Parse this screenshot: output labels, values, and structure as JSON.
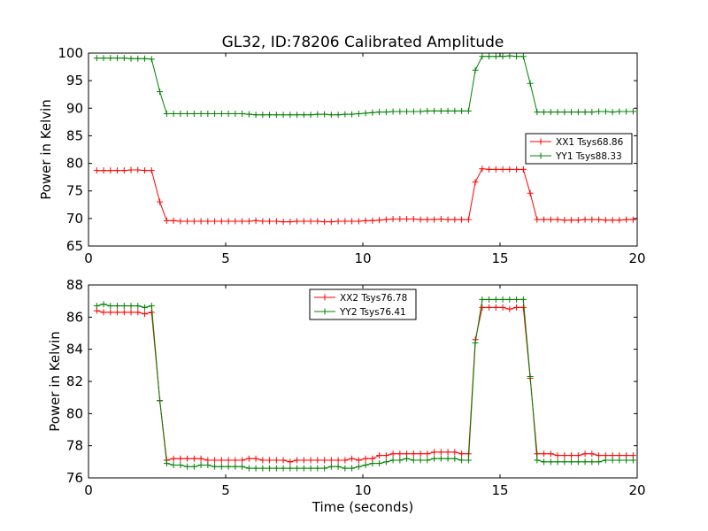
{
  "figure": {
    "title": "GL32, ID:78206 Calibrated Amplitude"
  },
  "chart_data": [
    {
      "type": "line",
      "ylabel": "Power in Kelvin",
      "xlabel": "",
      "xlim": [
        0,
        20
      ],
      "ylim": [
        65,
        100
      ],
      "xticks": [
        0,
        5,
        10,
        15,
        20
      ],
      "yticks": [
        65,
        70,
        75,
        80,
        85,
        90,
        95,
        100
      ],
      "grid": false,
      "legend_position": "right",
      "series": [
        {
          "name": "XX1 Tsys68.86",
          "color": "#ff0000",
          "x": [
            0.3,
            0.55,
            0.8,
            1.05,
            1.3,
            1.55,
            1.8,
            2.05,
            2.3,
            2.6,
            2.85,
            3.1,
            3.35,
            3.6,
            3.85,
            4.1,
            4.35,
            4.6,
            4.85,
            5.1,
            5.35,
            5.6,
            5.85,
            6.1,
            6.35,
            6.6,
            6.85,
            7.1,
            7.35,
            7.6,
            7.85,
            8.1,
            8.35,
            8.6,
            8.85,
            9.1,
            9.35,
            9.6,
            9.85,
            10.1,
            10.35,
            10.6,
            10.85,
            11.1,
            11.35,
            11.6,
            11.85,
            12.1,
            12.35,
            12.6,
            12.85,
            13.1,
            13.35,
            13.6,
            13.85,
            14.1,
            14.35,
            14.6,
            14.85,
            15.1,
            15.35,
            15.6,
            15.85,
            16.1,
            16.35,
            16.6,
            16.85,
            17.1,
            17.35,
            17.6,
            17.85,
            18.1,
            18.35,
            18.6,
            18.85,
            19.1,
            19.35,
            19.6,
            19.85
          ],
          "values": [
            78.7,
            78.7,
            78.7,
            78.7,
            78.7,
            78.8,
            78.8,
            78.7,
            78.7,
            73.0,
            69.6,
            69.6,
            69.5,
            69.5,
            69.5,
            69.5,
            69.5,
            69.5,
            69.5,
            69.5,
            69.5,
            69.5,
            69.5,
            69.6,
            69.5,
            69.5,
            69.5,
            69.4,
            69.4,
            69.5,
            69.5,
            69.5,
            69.5,
            69.4,
            69.4,
            69.5,
            69.5,
            69.5,
            69.5,
            69.6,
            69.6,
            69.7,
            69.8,
            69.9,
            69.9,
            69.9,
            69.9,
            69.8,
            69.8,
            69.8,
            69.9,
            69.8,
            69.8,
            69.8,
            69.8,
            76.6,
            79.0,
            78.9,
            78.9,
            78.9,
            78.9,
            78.9,
            78.9,
            74.6,
            69.8,
            69.8,
            69.8,
            69.8,
            69.7,
            69.7,
            69.7,
            69.8,
            69.8,
            69.8,
            69.7,
            69.7,
            69.7,
            69.8,
            69.8
          ]
        },
        {
          "name": "YY1 Tsys88.33",
          "color": "#008000",
          "x": [
            0.3,
            0.55,
            0.8,
            1.05,
            1.3,
            1.55,
            1.8,
            2.05,
            2.3,
            2.6,
            2.85,
            3.1,
            3.35,
            3.6,
            3.85,
            4.1,
            4.35,
            4.6,
            4.85,
            5.1,
            5.35,
            5.6,
            5.85,
            6.1,
            6.35,
            6.6,
            6.85,
            7.1,
            7.35,
            7.6,
            7.85,
            8.1,
            8.35,
            8.6,
            8.85,
            9.1,
            9.35,
            9.6,
            9.85,
            10.1,
            10.35,
            10.6,
            10.85,
            11.1,
            11.35,
            11.6,
            11.85,
            12.1,
            12.35,
            12.6,
            12.85,
            13.1,
            13.35,
            13.6,
            13.85,
            14.1,
            14.35,
            14.6,
            14.85,
            15.1,
            15.35,
            15.6,
            15.85,
            16.1,
            16.35,
            16.6,
            16.85,
            17.1,
            17.35,
            17.6,
            17.85,
            18.1,
            18.35,
            18.6,
            18.85,
            19.1,
            19.35,
            19.6,
            19.85
          ],
          "values": [
            99.1,
            99.1,
            99.1,
            99.1,
            99.1,
            99.0,
            99.0,
            99.0,
            98.9,
            93.0,
            89.0,
            89.0,
            89.0,
            89.0,
            89.0,
            89.0,
            89.0,
            89.0,
            89.0,
            89.0,
            89.0,
            89.0,
            88.9,
            88.8,
            88.8,
            88.8,
            88.8,
            88.8,
            88.8,
            88.8,
            88.8,
            88.8,
            88.9,
            88.9,
            88.8,
            88.8,
            88.9,
            88.9,
            89.0,
            89.1,
            89.2,
            89.3,
            89.3,
            89.4,
            89.4,
            89.4,
            89.4,
            89.4,
            89.5,
            89.5,
            89.5,
            89.5,
            89.5,
            89.5,
            89.5,
            96.9,
            99.4,
            99.4,
            99.4,
            99.4,
            99.5,
            99.4,
            99.4,
            94.5,
            89.3,
            89.3,
            89.3,
            89.3,
            89.3,
            89.3,
            89.3,
            89.3,
            89.3,
            89.4,
            89.4,
            89.3,
            89.4,
            89.4,
            89.4
          ]
        }
      ]
    },
    {
      "type": "line",
      "ylabel": "Power in Kelvin",
      "xlabel": "Time (seconds)",
      "xlim": [
        0,
        20
      ],
      "ylim": [
        76,
        88
      ],
      "xticks": [
        0,
        5,
        10,
        15,
        20
      ],
      "yticks": [
        76,
        78,
        80,
        82,
        84,
        86,
        88
      ],
      "grid": false,
      "legend_position": "top-center",
      "series": [
        {
          "name": "XX2 Tsys76.78",
          "color": "#ff0000",
          "x": [
            0.3,
            0.55,
            0.8,
            1.05,
            1.3,
            1.55,
            1.8,
            2.05,
            2.3,
            2.6,
            2.85,
            3.1,
            3.35,
            3.6,
            3.85,
            4.1,
            4.35,
            4.6,
            4.85,
            5.1,
            5.35,
            5.6,
            5.85,
            6.1,
            6.35,
            6.6,
            6.85,
            7.1,
            7.35,
            7.6,
            7.85,
            8.1,
            8.35,
            8.6,
            8.85,
            9.1,
            9.35,
            9.6,
            9.85,
            10.1,
            10.35,
            10.6,
            10.85,
            11.1,
            11.35,
            11.6,
            11.85,
            12.1,
            12.35,
            12.6,
            12.85,
            13.1,
            13.35,
            13.6,
            13.85,
            14.1,
            14.35,
            14.6,
            14.85,
            15.1,
            15.35,
            15.6,
            15.85,
            16.1,
            16.35,
            16.6,
            16.85,
            17.1,
            17.35,
            17.6,
            17.85,
            18.1,
            18.35,
            18.6,
            18.85,
            19.1,
            19.35,
            19.6,
            19.85
          ],
          "values": [
            86.4,
            86.3,
            86.3,
            86.3,
            86.3,
            86.3,
            86.3,
            86.2,
            86.3,
            80.8,
            77.1,
            77.2,
            77.2,
            77.2,
            77.2,
            77.2,
            77.1,
            77.1,
            77.1,
            77.1,
            77.1,
            77.1,
            77.2,
            77.2,
            77.1,
            77.1,
            77.1,
            77.1,
            77.0,
            77.1,
            77.1,
            77.1,
            77.1,
            77.1,
            77.1,
            77.1,
            77.1,
            77.2,
            77.1,
            77.2,
            77.2,
            77.4,
            77.4,
            77.5,
            77.5,
            77.5,
            77.5,
            77.5,
            77.5,
            77.6,
            77.6,
            77.6,
            77.6,
            77.5,
            77.5,
            84.6,
            86.6,
            86.6,
            86.6,
            86.6,
            86.5,
            86.6,
            86.6,
            82.2,
            77.5,
            77.5,
            77.5,
            77.4,
            77.4,
            77.4,
            77.4,
            77.5,
            77.5,
            77.4,
            77.4,
            77.4,
            77.4,
            77.4,
            77.4
          ]
        },
        {
          "name": "YY2 Tsys76.41",
          "color": "#008000",
          "x": [
            0.3,
            0.55,
            0.8,
            1.05,
            1.3,
            1.55,
            1.8,
            2.05,
            2.3,
            2.6,
            2.85,
            3.1,
            3.35,
            3.6,
            3.85,
            4.1,
            4.35,
            4.6,
            4.85,
            5.1,
            5.35,
            5.6,
            5.85,
            6.1,
            6.35,
            6.6,
            6.85,
            7.1,
            7.35,
            7.6,
            7.85,
            8.1,
            8.35,
            8.6,
            8.85,
            9.1,
            9.35,
            9.6,
            9.85,
            10.1,
            10.35,
            10.6,
            10.85,
            11.1,
            11.35,
            11.6,
            11.85,
            12.1,
            12.35,
            12.6,
            12.85,
            13.1,
            13.35,
            13.6,
            13.85,
            14.1,
            14.35,
            14.6,
            14.85,
            15.1,
            15.35,
            15.6,
            15.85,
            16.1,
            16.35,
            16.6,
            16.85,
            17.1,
            17.35,
            17.6,
            17.85,
            18.1,
            18.35,
            18.6,
            18.85,
            19.1,
            19.35,
            19.6,
            19.85
          ],
          "values": [
            86.7,
            86.8,
            86.7,
            86.7,
            86.7,
            86.7,
            86.7,
            86.6,
            86.7,
            80.8,
            76.9,
            76.8,
            76.8,
            76.7,
            76.7,
            76.8,
            76.8,
            76.7,
            76.7,
            76.7,
            76.7,
            76.7,
            76.6,
            76.6,
            76.6,
            76.6,
            76.6,
            76.6,
            76.6,
            76.6,
            76.6,
            76.6,
            76.6,
            76.6,
            76.7,
            76.7,
            76.6,
            76.6,
            76.7,
            76.8,
            76.9,
            76.9,
            77.0,
            77.1,
            77.1,
            77.2,
            77.1,
            77.1,
            77.1,
            77.2,
            77.2,
            77.2,
            77.2,
            77.1,
            77.1,
            84.4,
            87.1,
            87.1,
            87.1,
            87.1,
            87.1,
            87.1,
            87.1,
            82.3,
            77.1,
            77.0,
            77.0,
            77.0,
            77.0,
            77.0,
            77.0,
            77.0,
            77.0,
            77.0,
            77.1,
            77.1,
            77.1,
            77.1,
            77.1
          ]
        }
      ]
    }
  ]
}
